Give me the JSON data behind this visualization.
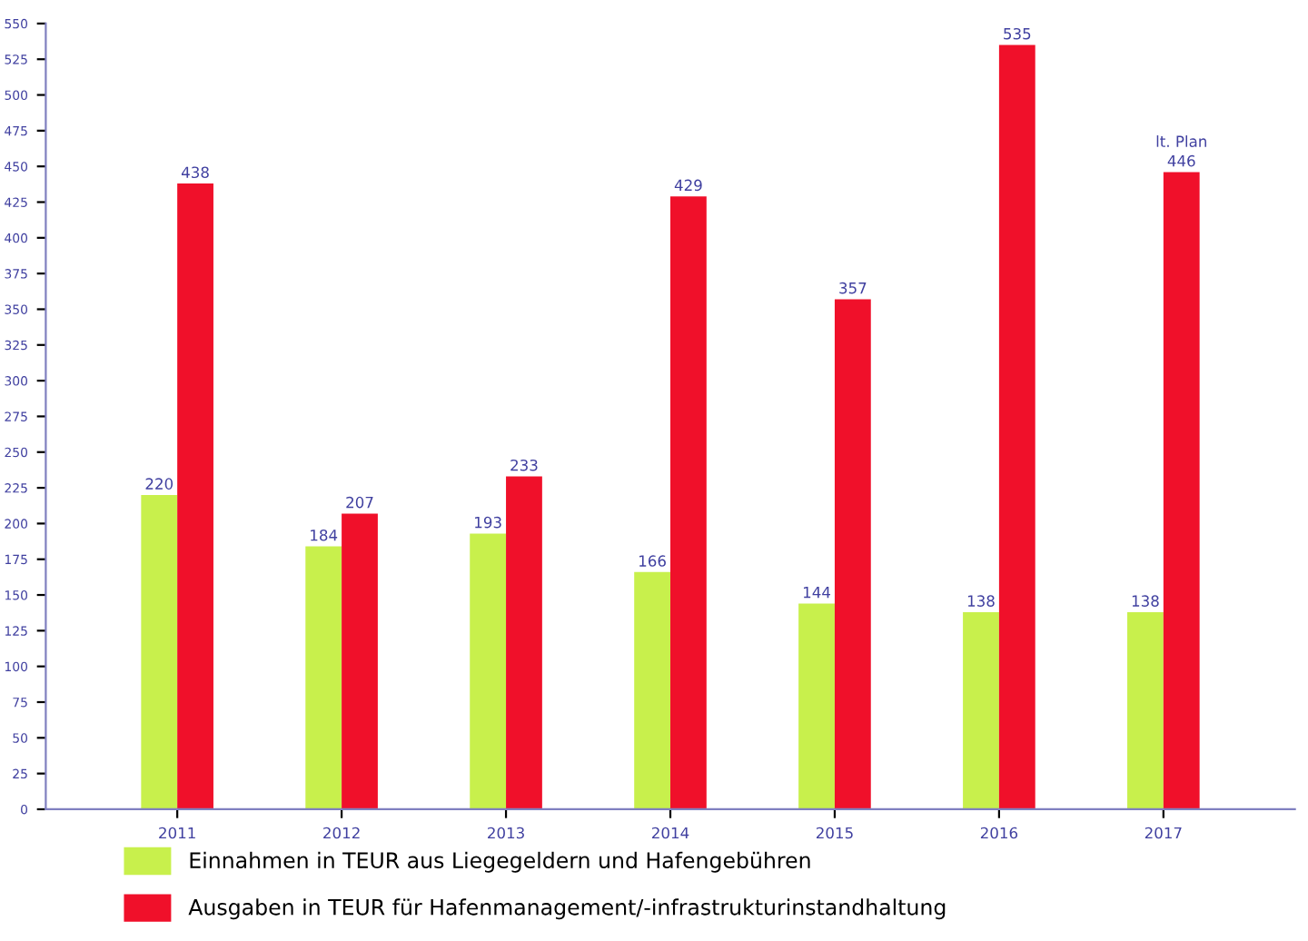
{
  "chart_data": {
    "type": "bar",
    "categories": [
      "2011",
      "2012",
      "2013",
      "2014",
      "2015",
      "2016",
      "2017"
    ],
    "series": [
      {
        "name": "Einnahmen in TEUR aus Liegegeldern und Hafengebühren",
        "color": "#c8f04c",
        "values": [
          220,
          184,
          193,
          166,
          144,
          138,
          138
        ]
      },
      {
        "name": "Ausgaben in TEUR für Hafenmanagement/-infrastrukturinstandhaltung",
        "color": "#f0102a",
        "values": [
          438,
          207,
          233,
          429,
          357,
          535,
          446
        ]
      }
    ],
    "ylim": [
      0,
      550
    ],
    "yticks": [
      0,
      25,
      50,
      75,
      100,
      125,
      150,
      175,
      200,
      225,
      250,
      275,
      300,
      325,
      350,
      375,
      400,
      425,
      450,
      475,
      500,
      525,
      550
    ],
    "data_labels": true,
    "annotations": [
      {
        "text": "lt. Plan",
        "x": "2017",
        "y": 446
      }
    ],
    "grid": false,
    "legend": "bottom"
  }
}
